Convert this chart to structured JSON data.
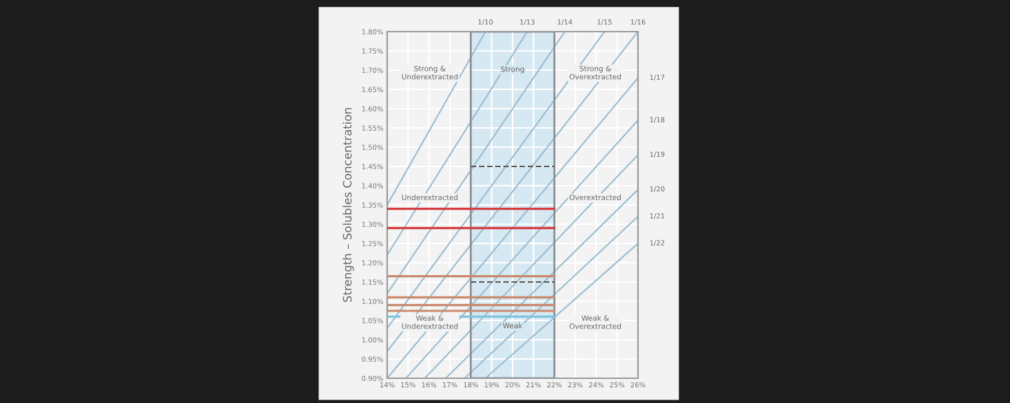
{
  "chart_data": {
    "type": "line",
    "ylabel": "Strength – Solubles Concentration",
    "xlim": [
      14,
      26
    ],
    "ylim": [
      0.9,
      1.8
    ],
    "xticks": [
      {
        "value": 14,
        "label": "14%"
      },
      {
        "value": 15,
        "label": "15%"
      },
      {
        "value": 16,
        "label": "16%"
      },
      {
        "value": 17,
        "label": "17%"
      },
      {
        "value": 18,
        "label": "18%"
      },
      {
        "value": 19,
        "label": "19%"
      },
      {
        "value": 20,
        "label": "20%"
      },
      {
        "value": 21,
        "label": "21%"
      },
      {
        "value": 22,
        "label": "22%"
      },
      {
        "value": 23,
        "label": "23%"
      },
      {
        "value": 24,
        "label": "24%"
      },
      {
        "value": 25,
        "label": "25%"
      },
      {
        "value": 26,
        "label": "26%"
      }
    ],
    "yticks": [
      {
        "value": 0.9,
        "label": "0.90%"
      },
      {
        "value": 0.95,
        "label": "0.95%"
      },
      {
        "value": 1.0,
        "label": "1.00%"
      },
      {
        "value": 1.05,
        "label": "1.05%"
      },
      {
        "value": 1.1,
        "label": "1.10%"
      },
      {
        "value": 1.15,
        "label": "1.15%"
      },
      {
        "value": 1.2,
        "label": "1.20%"
      },
      {
        "value": 1.25,
        "label": "1.25%"
      },
      {
        "value": 1.3,
        "label": "1.30%"
      },
      {
        "value": 1.35,
        "label": "1.35%"
      },
      {
        "value": 1.4,
        "label": "1.40%"
      },
      {
        "value": 1.45,
        "label": "1.45%"
      },
      {
        "value": 1.5,
        "label": "1.50%"
      },
      {
        "value": 1.55,
        "label": "1.55%"
      },
      {
        "value": 1.6,
        "label": "1.60%"
      },
      {
        "value": 1.65,
        "label": "1.65%"
      },
      {
        "value": 1.7,
        "label": "1.70%"
      },
      {
        "value": 1.75,
        "label": "1.75%"
      },
      {
        "value": 1.8,
        "label": "1.80%"
      }
    ],
    "grid": true,
    "line_style": "solid",
    "series": [
      {
        "name": "1/10",
        "color": "#9dbfd2",
        "x": [
          14,
          18.7
        ],
        "values": [
          1.35,
          1.8
        ]
      },
      {
        "name": "1/13",
        "color": "#9dbfd2",
        "x": [
          14,
          20.7
        ],
        "values": [
          1.22,
          1.8
        ]
      },
      {
        "name": "1/14",
        "color": "#9dbfd2",
        "x": [
          14,
          22.5
        ],
        "values": [
          1.12,
          1.8
        ]
      },
      {
        "name": "1/15",
        "color": "#9dbfd2",
        "x": [
          14,
          24.4
        ],
        "values": [
          1.03,
          1.8
        ]
      },
      {
        "name": "1/16",
        "color": "#9dbfd2",
        "x": [
          14,
          26
        ],
        "values": [
          0.97,
          1.8
        ]
      },
      {
        "name": "1/17",
        "color": "#9dbfd2",
        "x": [
          14,
          26
        ],
        "values": [
          0.9,
          1.68
        ]
      },
      {
        "name": "1/18",
        "color": "#9dbfd2",
        "x": [
          14.9,
          26
        ],
        "values": [
          0.9,
          1.57
        ]
      },
      {
        "name": "1/19",
        "color": "#9dbfd2",
        "x": [
          15.8,
          26
        ],
        "values": [
          0.9,
          1.48
        ]
      },
      {
        "name": "1/20",
        "color": "#9dbfd2",
        "x": [
          16.8,
          26
        ],
        "values": [
          0.9,
          1.39
        ]
      },
      {
        "name": "1/21",
        "color": "#9dbfd2",
        "x": [
          17.7,
          26
        ],
        "values": [
          0.9,
          1.32
        ]
      },
      {
        "name": "1/22",
        "color": "#9dbfd2",
        "x": [
          18.7,
          26
        ],
        "values": [
          0.9,
          1.25
        ]
      }
    ],
    "bands": [
      {
        "axis": "x",
        "from": 18,
        "to": 22,
        "color": "#d6e8f2"
      }
    ],
    "ref_lines": [
      {
        "axis": "y",
        "value": 1.45,
        "color": "#555555",
        "line_style": "dashed"
      },
      {
        "axis": "y",
        "value": 1.34,
        "color": "#d63b3f"
      },
      {
        "axis": "y",
        "value": 1.29,
        "color": "#d63b3f"
      },
      {
        "axis": "y",
        "value": 1.165,
        "color": "#c98a6e"
      },
      {
        "axis": "y",
        "value": 1.15,
        "color": "#555555",
        "line_style": "dashed"
      },
      {
        "axis": "y",
        "value": 1.11,
        "color": "#c98a6e"
      },
      {
        "axis": "y",
        "value": 1.09,
        "color": "#c98a6e"
      },
      {
        "axis": "y",
        "value": 1.075,
        "color": "#c98a6e"
      },
      {
        "axis": "y",
        "value": 1.06,
        "color": "#7ec4e0"
      }
    ],
    "annotations": [
      "Strong &\nUnderextracted",
      "Strong",
      "Strong &\nOverextracted",
      "Underextracted",
      "Overextracted",
      "Weak &\nUnderextracted",
      "Weak",
      "Weak &\nOverextracted"
    ]
  }
}
